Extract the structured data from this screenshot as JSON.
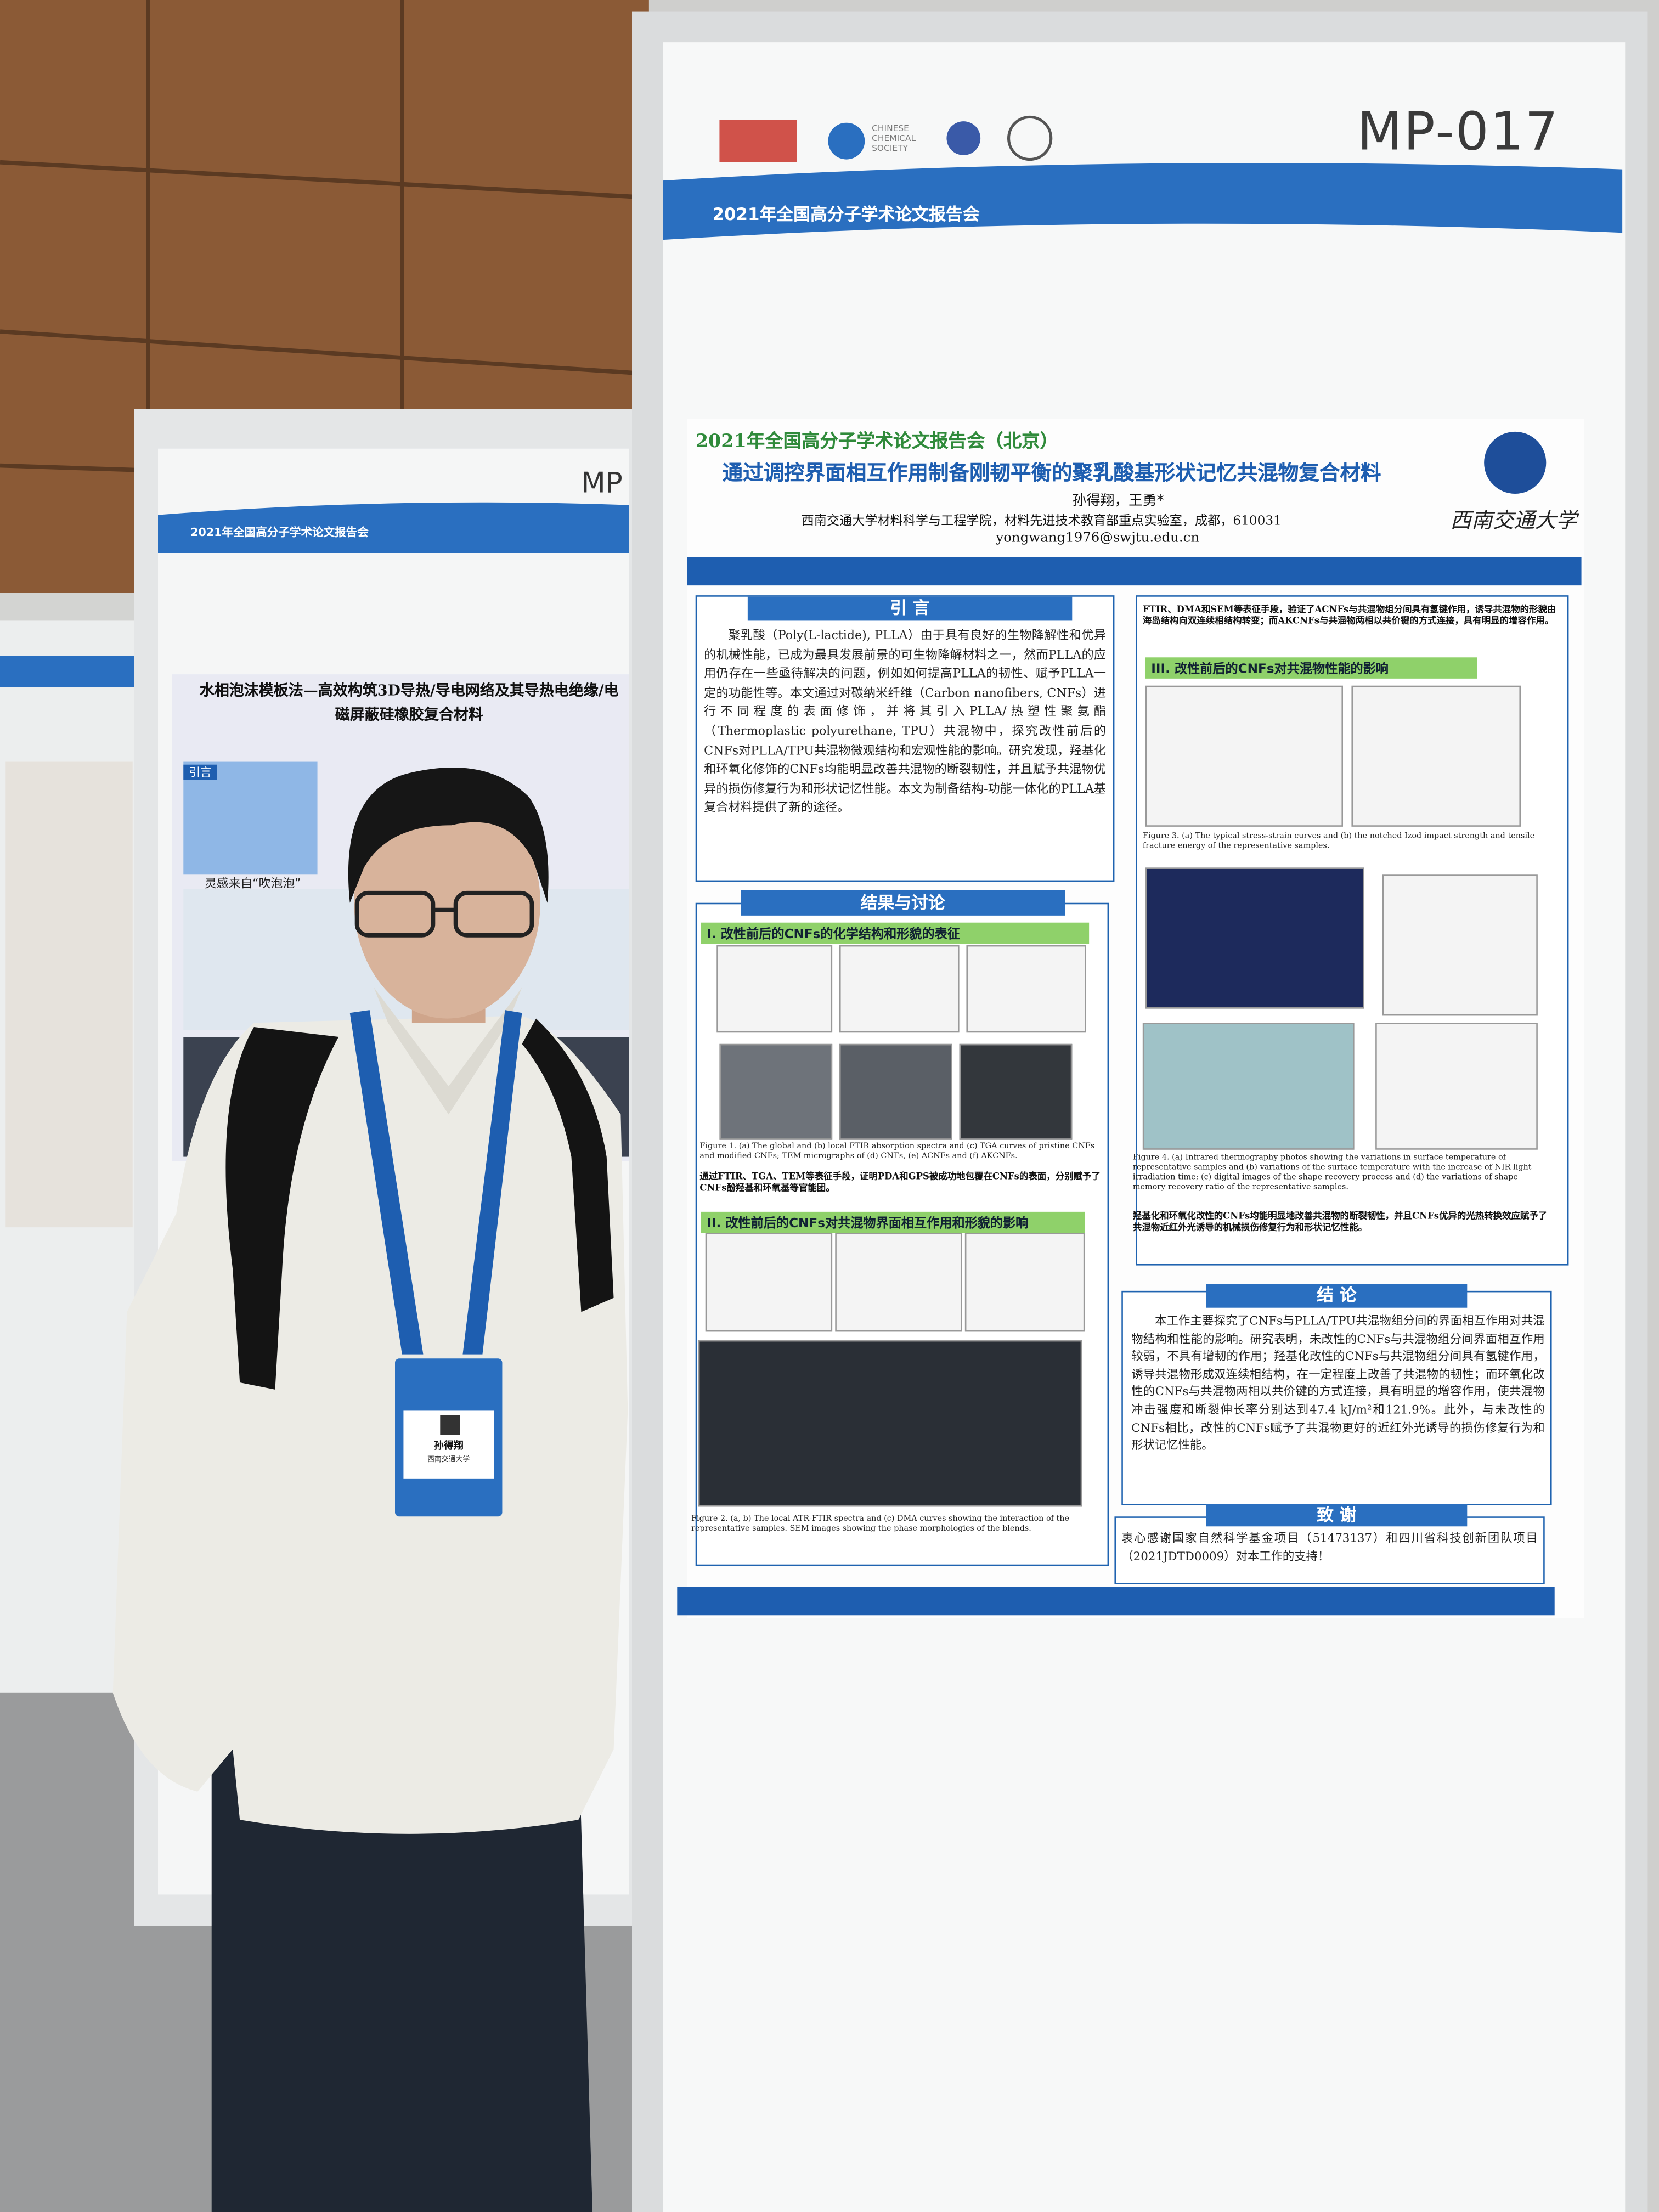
{
  "main_board": {
    "number": "MP-017",
    "banner": "2021年全国高分子学术论文报告会",
    "society": "CHINESE CHEMICAL SOCIETY"
  },
  "poster": {
    "header": "2021年全国高分子学术论文报告会（北京）",
    "title": "通过调控界面相互作用制备刚韧平衡的聚乳酸基形状记忆共混物复合材料",
    "authors": "孙得翔，王勇*",
    "affiliation": "西南交通大学材料科学与工程学院，材料先进技术教育部重点实验室，成都，610031",
    "email": "yongwang1976@swjtu.edu.cn",
    "university": "西南交通大学",
    "intro": {
      "heading": "引 言",
      "text": "聚乳酸（Poly(L-lactide), PLLA）由于具有良好的生物降解性和优异的机械性能，已成为最具发展前景的可生物降解材料之一，然而PLLA的应用仍存在一些亟待解决的问题，例如如何提高PLLA的韧性、赋予PLLA一定的功能性等。本文通过对碳纳米纤维（Carbon nanofibers, CNFs）进行不同程度的表面修饰，并将其引入PLLA/热塑性聚氨酯（Thermoplastic polyurethane, TPU）共混物中，探究改性前后的CNFs对PLLA/TPU共混物微观结构和宏观性能的影响。研究发现，羟基化和环氧化修饰的CNFs均能明显改善共混物的断裂韧性，并且赋予共混物优异的损伤修复行为和形状记忆性能。本文为制备结构-功能一体化的PLLA基复合材料提供了新的途径。"
    },
    "results": {
      "heading": "结果与讨论",
      "sub1": "I. 改性前后的CNFs的化学结构和形貌的表征",
      "fig1_caption": "Figure 1. (a) The global and (b) local FTIR absorption spectra and (c) TGA curves of pristine CNFs and modified CNFs; TEM micrographs of (d) CNFs, (e) ACNFs and (f) AKCNFs.",
      "fig1_note": "通过FTIR、TGA、TEM等表征手段，证明PDA和GPS被成功地包覆在CNFs的表面，分别赋予了CNFs酚羟基和环氧基等官能团。",
      "sub2": "II. 改性前后的CNFs对共混物界面相互作用和形貌的影响",
      "fig2_caption": "Figure 2. (a, b) The local ATR-FTIR spectra and (c) DMA curves showing the interaction of the representative samples. SEM images showing the phase morphologies of the blends.",
      "right_note": "FTIR、DMA和SEM等表征手段，验证了ACNFs与共混物组分间具有氢键作用，诱导共混物的形貌由海岛结构向双连续相结构转变；而AKCNFs与共混物两相以共价键的方式连接，具有明显的增容作用。",
      "sub3": "III. 改性前后的CNFs对共混物性能的影响",
      "fig3_caption": "Figure 3. (a) The typical stress-strain curves and (b) the notched Izod impact strength and tensile fracture energy of the representative samples.",
      "fig4_caption": "Figure 4. (a) Infrared thermography photos showing the variations in surface temperature of representative samples and (b) variations of the surface temperature with the increase of NIR light irradiation time; (c) digital images of the shape recovery process and (d) the variations of shape memory recovery ratio of the representative samples.",
      "fig4_note": "羟基化和环氧化改性的CNFs均能明显地改善共混物的断裂韧性，并且CNFs优异的光热转换效应赋予了共混物近红外光诱导的机械损伤修复行为和形状记忆性能。"
    },
    "conclusion": {
      "heading": "结 论",
      "text": "本工作主要探究了CNFs与PLLA/TPU共混物组分间的界面相互作用对共混物结构和性能的影响。研究表明，未改性的CNFs与共混物组分间界面相互作用较弱，不具有增韧的作用；羟基化改性的CNFs与共混物组分间具有氢键作用，诱导共混物形成双连续相结构，在一定程度上改善了共混物的韧性；而环氧化改性的CNFs与共混物两相以共价键的方式连接，具有明显的增容作用，使共混物冲击强度和断裂伸长率分别达到47.4 kJ/m²和121.9%。此外，与未改性的CNFs相比，改性的CNFs赋予了共混物更好的近红外光诱导的损伤修复行为和形状记忆性能。"
    },
    "acknowledgement": {
      "heading": "致 谢",
      "text": "衷心感谢国家自然科学基金项目（51473137）和四川省科技创新团队项目（2021JDTD0009）对本工作的支持！"
    }
  },
  "left_board": {
    "number": "MP",
    "banner": "2021年全国高分子学术论文报告会",
    "title": "水相泡沫模板法—高效构筑3D导热/导电网络及其导热电绝缘/电磁屏蔽硅橡胶复合材料",
    "intro_heading": "引言",
    "caption": "灵感来自“吹泡泡”"
  },
  "badge": {
    "name": "孙得翔",
    "org": "西南交通大学"
  }
}
